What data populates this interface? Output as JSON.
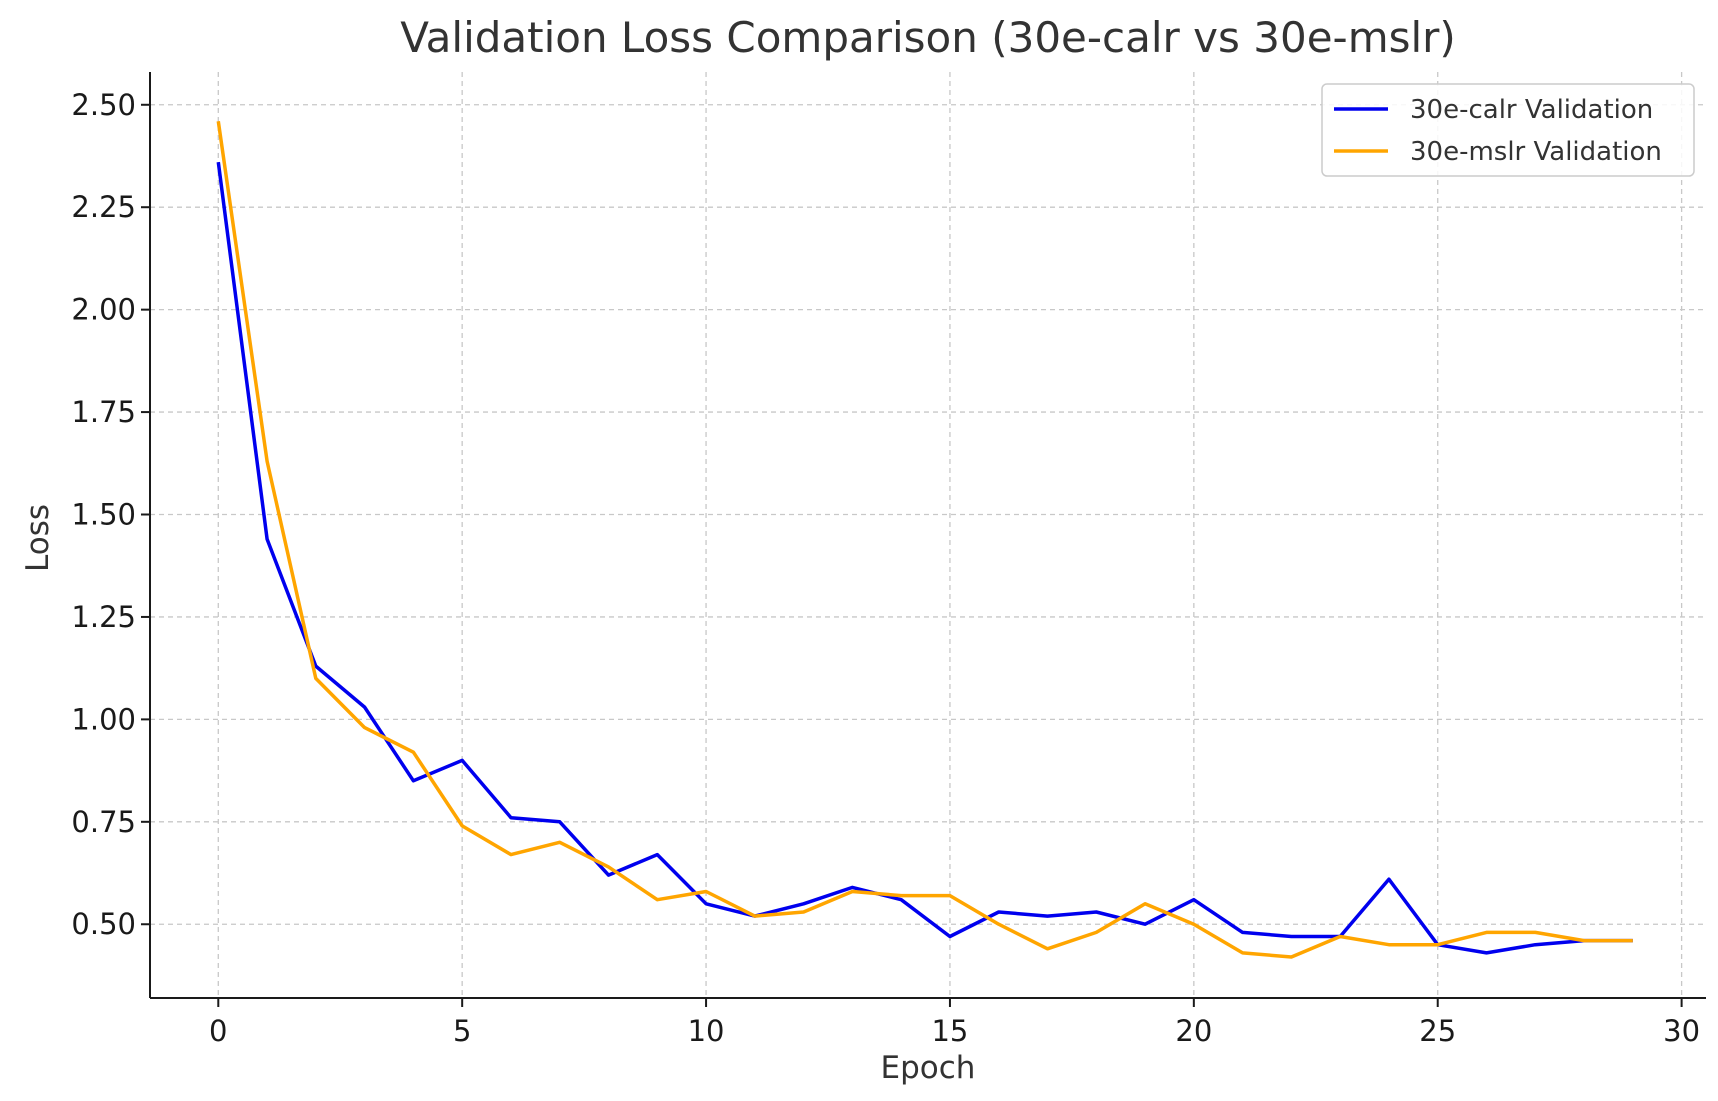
{
  "chart_data": {
    "type": "line",
    "title": "Validation Loss Comparison (30e-calr vs 30e-mslr)",
    "xlabel": "Epoch",
    "ylabel": "Loss",
    "xlim": [
      -1.4,
      30.5
    ],
    "ylim": [
      0.32,
      2.58
    ],
    "xticks": [
      0,
      5,
      10,
      15,
      20,
      25,
      30
    ],
    "yticks": [
      0.5,
      0.75,
      1.0,
      1.25,
      1.5,
      1.75,
      2.0,
      2.25,
      2.5
    ],
    "xtick_labels": [
      "0",
      "5",
      "10",
      "15",
      "20",
      "25",
      "30"
    ],
    "ytick_labels": [
      "0.50",
      "0.75",
      "1.00",
      "1.25",
      "1.50",
      "1.75",
      "2.00",
      "2.25",
      "2.50"
    ],
    "grid": true,
    "legend_position": "top-right",
    "x": [
      0,
      1,
      2,
      3,
      4,
      5,
      6,
      7,
      8,
      9,
      10,
      11,
      12,
      13,
      14,
      15,
      16,
      17,
      18,
      19,
      20,
      21,
      22,
      23,
      24,
      25,
      26,
      27,
      28,
      29
    ],
    "series": [
      {
        "name": "30e-calr Validation",
        "color": "#0000ee",
        "values": [
          2.36,
          1.44,
          1.13,
          1.03,
          0.85,
          0.9,
          0.76,
          0.75,
          0.62,
          0.67,
          0.55,
          0.52,
          0.55,
          0.59,
          0.56,
          0.47,
          0.53,
          0.52,
          0.53,
          0.5,
          0.56,
          0.48,
          0.47,
          0.47,
          0.61,
          0.45,
          0.43,
          0.45,
          0.46,
          0.46
        ]
      },
      {
        "name": "30e-mslr Validation",
        "color": "#ffa500",
        "values": [
          2.46,
          1.63,
          1.1,
          0.98,
          0.92,
          0.74,
          0.67,
          0.7,
          0.64,
          0.56,
          0.58,
          0.52,
          0.53,
          0.58,
          0.57,
          0.57,
          0.5,
          0.44,
          0.48,
          0.55,
          0.5,
          0.43,
          0.42,
          0.47,
          0.45,
          0.45,
          0.48,
          0.48,
          0.46,
          0.46
        ]
      }
    ]
  }
}
